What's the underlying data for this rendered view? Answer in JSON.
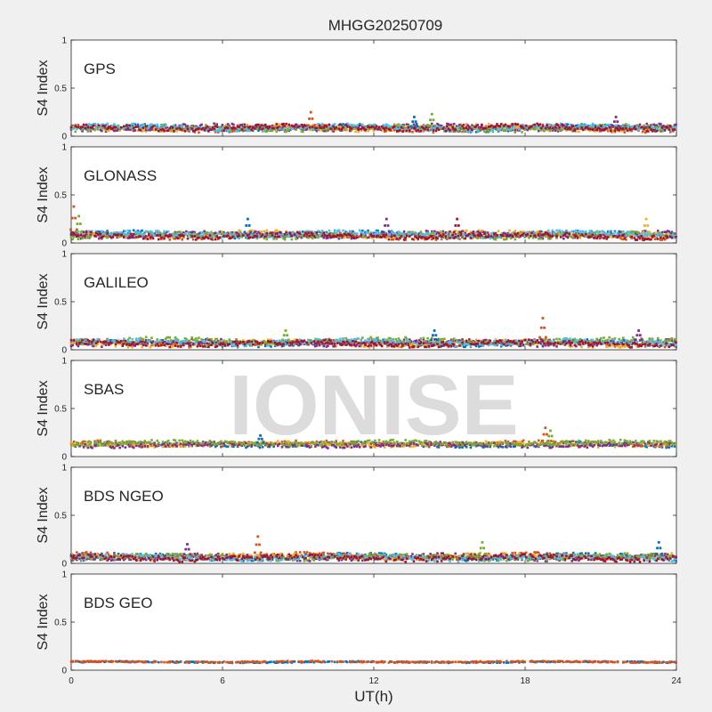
{
  "figure_title": "MHGG20250709",
  "watermark": "IONISE",
  "colors": {
    "background": "#f0f0f0",
    "axes_bg": "#ffffff",
    "axis_line": "#262626",
    "watermark": "#dcdcdc",
    "series": [
      "#0072BD",
      "#D95319",
      "#EDB120",
      "#7E2F8E",
      "#77AC30",
      "#4DBEEE",
      "#A2142F"
    ]
  },
  "chart_data": [
    {
      "type": "scatter",
      "label": "GPS",
      "ylabel": "S4 Index",
      "xlabel": "",
      "xlim": [
        0,
        24
      ],
      "ylim": [
        0,
        1
      ],
      "yticks": [
        "0",
        "0.5",
        "1"
      ],
      "xticks": [],
      "baseline": 0.08,
      "spread": 0.05,
      "n_series": 7,
      "peaks": [
        [
          9.5,
          0.25
        ],
        [
          14.3,
          0.23
        ],
        [
          13.6,
          0.2
        ],
        [
          21.6,
          0.2
        ]
      ]
    },
    {
      "type": "scatter",
      "label": "GLONASS",
      "ylabel": "S4 Index",
      "xlabel": "",
      "xlim": [
        0,
        24
      ],
      "ylim": [
        0,
        1
      ],
      "yticks": [
        "0",
        "0.5",
        "1"
      ],
      "xticks": [],
      "baseline": 0.08,
      "spread": 0.05,
      "n_series": 7,
      "peaks": [
        [
          0.1,
          0.38
        ],
        [
          0.3,
          0.28
        ],
        [
          7.0,
          0.25
        ],
        [
          12.5,
          0.25
        ],
        [
          15.3,
          0.25
        ],
        [
          22.8,
          0.25
        ]
      ]
    },
    {
      "type": "scatter",
      "label": "GALILEO",
      "ylabel": "S4 Index",
      "xlabel": "",
      "xlim": [
        0,
        24
      ],
      "ylim": [
        0,
        1
      ],
      "yticks": [
        "0",
        "0.5",
        "1"
      ],
      "xticks": [],
      "baseline": 0.08,
      "spread": 0.05,
      "n_series": 7,
      "peaks": [
        [
          18.7,
          0.33
        ],
        [
          8.5,
          0.2
        ],
        [
          14.4,
          0.2
        ],
        [
          22.5,
          0.2
        ]
      ]
    },
    {
      "type": "scatter",
      "label": "SBAS",
      "ylabel": "S4 Index",
      "xlabel": "",
      "xlim": [
        0,
        24
      ],
      "ylim": [
        0,
        1
      ],
      "yticks": [
        "0",
        "0.5",
        "1"
      ],
      "xticks": [],
      "baseline": 0.13,
      "spread": 0.04,
      "n_series": 5,
      "peaks": [
        [
          18.8,
          0.3
        ],
        [
          19.0,
          0.27
        ],
        [
          7.5,
          0.22
        ]
      ]
    },
    {
      "type": "scatter",
      "label": "BDS NGEO",
      "ylabel": "S4 Index",
      "xlabel": "",
      "xlim": [
        0,
        24
      ],
      "ylim": [
        0,
        1
      ],
      "yticks": [
        "0",
        "0.5",
        "1"
      ],
      "xticks": [],
      "baseline": 0.07,
      "spread": 0.05,
      "n_series": 7,
      "peaks": [
        [
          7.4,
          0.28
        ],
        [
          16.3,
          0.22
        ],
        [
          23.3,
          0.22
        ],
        [
          4.6,
          0.2
        ]
      ]
    },
    {
      "type": "scatter",
      "label": "BDS GEO",
      "ylabel": "S4 Index",
      "xlabel": "UT(h)",
      "xlim": [
        0,
        24
      ],
      "ylim": [
        0,
        1
      ],
      "yticks": [
        "0",
        "0.5",
        "1"
      ],
      "xticks": [
        "0",
        "6",
        "12",
        "18",
        "24"
      ],
      "baseline": 0.085,
      "spread": 0.012,
      "n_series": 2,
      "peaks": []
    }
  ]
}
